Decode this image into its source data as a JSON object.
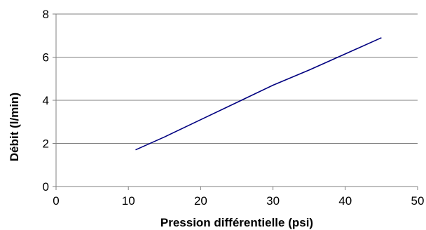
{
  "chart_data": {
    "type": "line",
    "title": "",
    "xlabel": "Pression différentielle (psi)",
    "ylabel": "Débit (l/min)",
    "xlim": [
      0,
      50
    ],
    "ylim": [
      0,
      8
    ],
    "x_ticks": [
      0,
      10,
      20,
      30,
      40,
      50
    ],
    "y_ticks": [
      0,
      2,
      4,
      6,
      8
    ],
    "grid": "horizontal",
    "legend": "none",
    "series": [
      {
        "color": "#000080",
        "x": [
          11,
          15,
          20,
          25,
          30,
          35,
          40,
          45
        ],
        "y": [
          1.7,
          2.3,
          3.1,
          3.9,
          4.7,
          5.4,
          6.15,
          6.9
        ]
      }
    ]
  }
}
